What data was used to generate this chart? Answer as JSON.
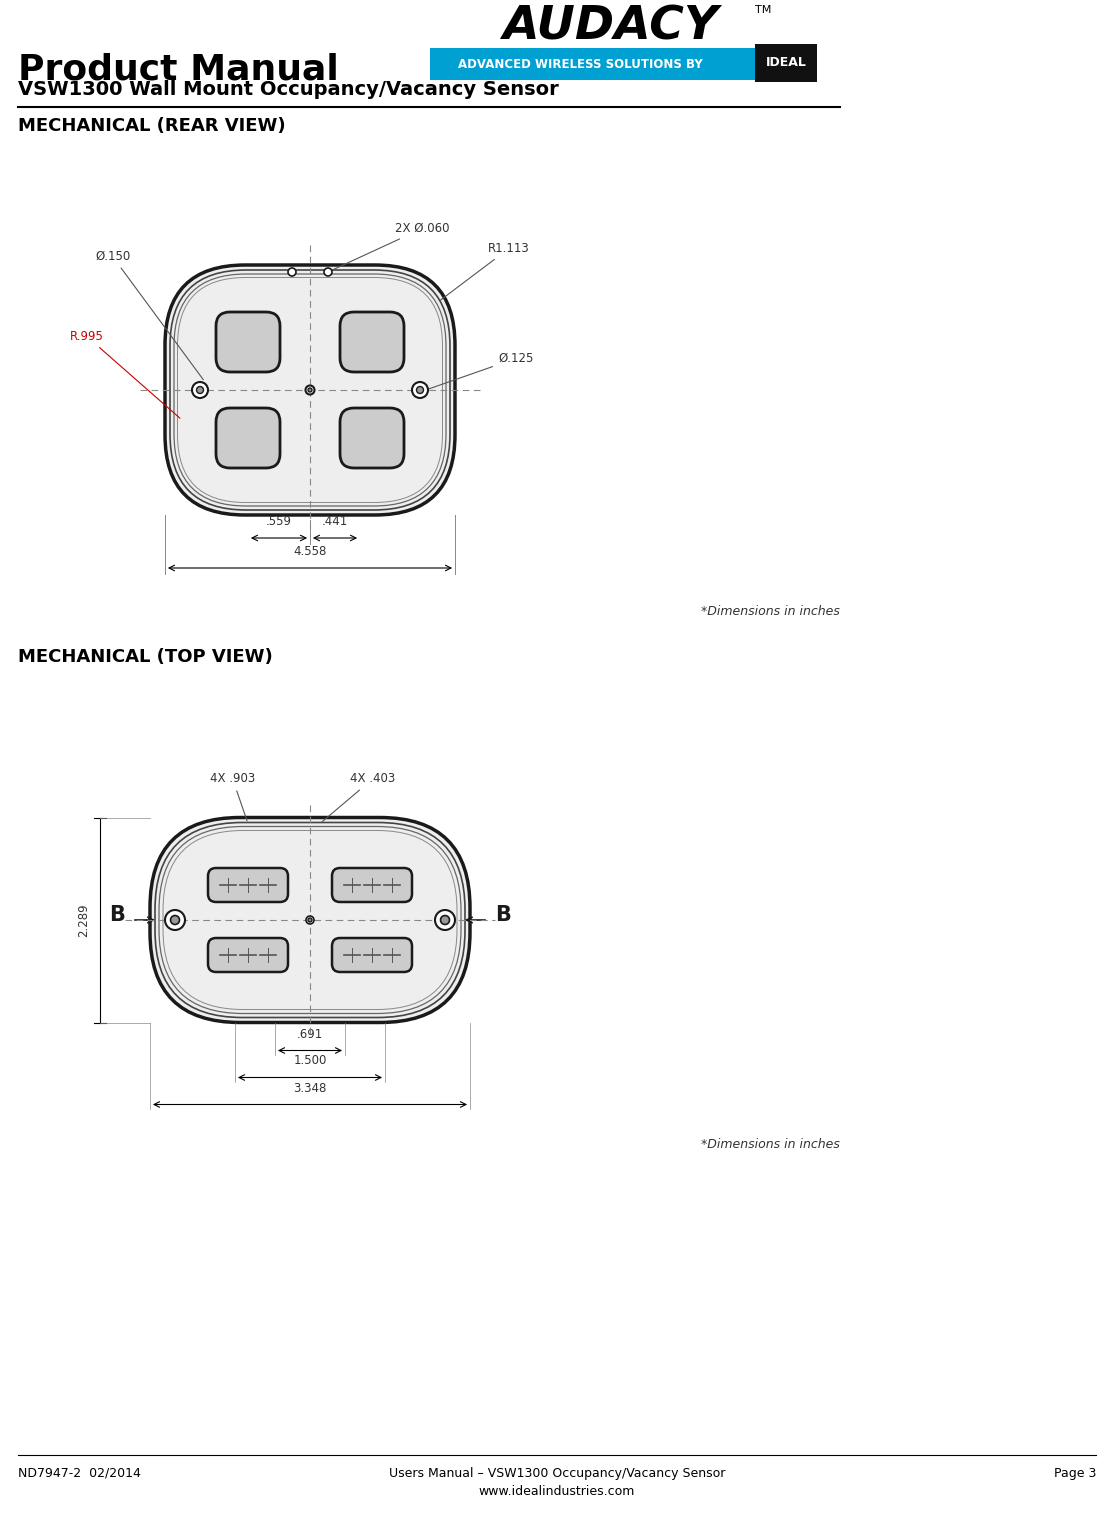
{
  "page_title": "Product Manual",
  "page_subtitle": "VSW1300 Wall Mount Occupancy/Vacancy Sensor",
  "section1_title": "MECHANICAL (REAR VIEW)",
  "section2_title": "MECHANICAL (TOP VIEW)",
  "dimensions_note": "*Dimensions in inches",
  "footer_left": "ND7947-2  02/2014",
  "footer_center_line1": "Users Manual – VSW1300 Occupancy/Vacancy Sensor",
  "footer_center_line2": "www.idealindustries.com",
  "footer_right": "Page 3",
  "audacy_text": "AUDACY",
  "audacy_sub": "ADVANCED WIRELESS SOLUTIONS BY",
  "rear_annotations": {
    "phi_150": "Ø.150",
    "r_995": "R.995",
    "two_x_phi_060": "2X Ø.060",
    "r1_113": "R1.113",
    "phi_125": "Ø.125",
    "dim_559": ".559",
    "dim_441": ".441",
    "dim_4558": "4.558"
  },
  "top_annotations": {
    "four_x_903": "4X .903",
    "four_x_403": "4X .403",
    "dim_B": "B",
    "dim_2289": "2.289",
    "dim_691": ".691",
    "dim_1500": "1.500",
    "dim_3348": "3.348"
  },
  "bg_color": "#ffffff",
  "text_color": "#000000",
  "line_color": "#000000",
  "drawing_color": "#1a1a1a",
  "annotation_color": "#555555"
}
